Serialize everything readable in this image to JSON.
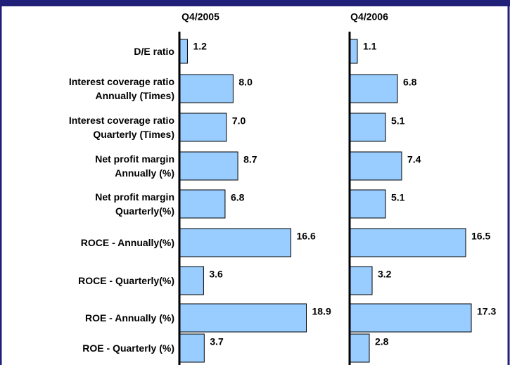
{
  "chart_data": [
    {
      "type": "bar",
      "orientation": "horizontal",
      "title": "Q4/2005",
      "categories": [
        "D/E ratio",
        "Interest coverage ratio\nAnnually (Times)",
        "Interest coverage ratio\nQuarterly (Times)",
        "Net profit margin\nAnnually (%)",
        "Net profit margin\nQuarterly(%)",
        "ROCE - Annually(%)",
        "ROCE - Quarterly(%)",
        "ROE - Annually (%)",
        "ROE - Quarterly (%)"
      ],
      "values": [
        1.2,
        8.0,
        7.0,
        8.7,
        6.8,
        16.6,
        3.6,
        18.9,
        3.7
      ],
      "value_labels": [
        "1.2",
        "8.0",
        "7.0",
        "8.7",
        "6.8",
        "16.6",
        "3.6",
        "18.9",
        "3.7"
      ],
      "color": "#99ccff",
      "xlim": [
        0,
        20
      ]
    },
    {
      "type": "bar",
      "orientation": "horizontal",
      "title": "Q4/2006",
      "values": [
        1.1,
        6.8,
        5.1,
        7.4,
        5.1,
        16.5,
        3.2,
        17.3,
        2.8
      ],
      "value_labels": [
        "1.1",
        "6.8",
        "5.1",
        "7.4",
        "5.1",
        "16.5",
        "3.2",
        "17.3",
        "2.8"
      ],
      "color": "#99ccff",
      "xlim": [
        0,
        18
      ]
    }
  ]
}
